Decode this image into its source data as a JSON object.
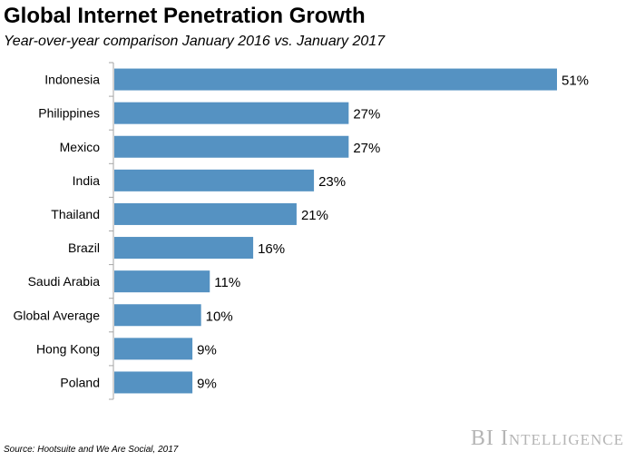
{
  "title": "Global Internet Penetration Growth",
  "subtitle": "Year-over-year comparison January 2016 vs. January 2017",
  "source": "Source: Hootsuite and We Are Social, 2017",
  "brand": "BI Intelligence",
  "colors": {
    "bar": "#5592c2",
    "axis": "#a6a6a6",
    "brand_text": "#b5b5b5"
  },
  "chart_data": {
    "type": "bar",
    "orientation": "horizontal",
    "title": "Global Internet Penetration Growth",
    "subtitle": "Year-over-year comparison January 2016 vs. January 2017",
    "xlabel": "",
    "ylabel": "",
    "xlim": [
      0,
      51
    ],
    "grid": false,
    "legend": "none",
    "categories": [
      "Indonesia",
      "Philippines",
      "Mexico",
      "India",
      "Thailand",
      "Brazil",
      "Saudi Arabia",
      "Global Average",
      "Hong Kong",
      "Poland"
    ],
    "values": [
      51,
      27,
      27,
      23,
      21,
      16,
      11,
      10,
      9,
      9
    ],
    "value_labels": [
      "51%",
      "27%",
      "27%",
      "23%",
      "21%",
      "16%",
      "11%",
      "10%",
      "9%",
      "9%"
    ]
  }
}
